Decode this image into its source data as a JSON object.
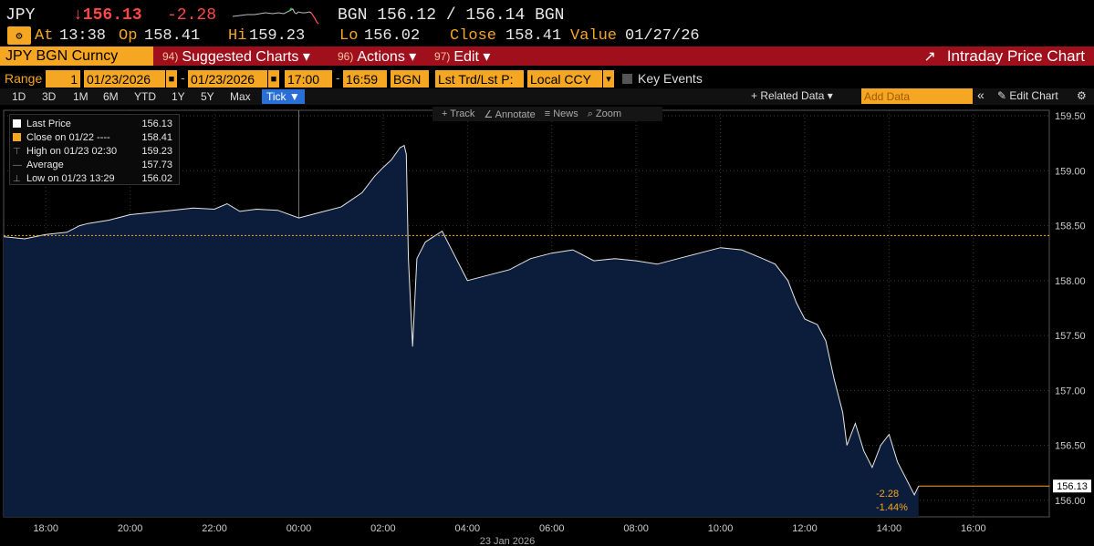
{
  "header": {
    "ticker": "JPY",
    "last": "↓156.13",
    "change": "-2.28",
    "bid_src": "BGN",
    "bid_ask": "156.12 / 156.14",
    "ask_src": "BGN",
    "at_label": "At",
    "at_value": "13:38",
    "op_label": "Op",
    "op_value": "158.41",
    "hi_label": "Hi",
    "hi_value": "159.23",
    "lo_label": "Lo",
    "lo_value": "156.02",
    "close_label": "Close",
    "close_value": "158.41",
    "value_label": "Value",
    "value_date": "01/27/26"
  },
  "menubar": {
    "security": "JPY BGN Curncy",
    "suggested_num": "94)",
    "suggested": "Suggested Charts ▾",
    "actions_num": "96)",
    "actions": "Actions ▾",
    "edit_num": "97)",
    "edit": "Edit ▾",
    "title": "Intraday Price Chart"
  },
  "range": {
    "label": "Range",
    "count": "1",
    "start_date": "01/23/2026",
    "end_date": "01/23/2026",
    "start_time": "17:00",
    "end_time": "16:59",
    "source": "BGN",
    "field": "Lst Trd/Lst P:",
    "currency": "Local CCY",
    "key_events": "Key Events"
  },
  "periods": [
    "1D",
    "3D",
    "1M",
    "6M",
    "YTD",
    "1Y",
    "5Y",
    "Max"
  ],
  "active_period": "Tick ▼",
  "right_controls": {
    "related": "+ Related Data ▾",
    "add_data_placeholder": "Add Data",
    "collapse": "«",
    "edit_chart": "✎ Edit Chart",
    "settings": "⚙"
  },
  "tools": [
    "+ Track",
    "∠ Annotate",
    "≡ News",
    "⌕ Zoom"
  ],
  "legend": [
    {
      "label": "Last Price",
      "value": "156.13",
      "color": "#ffffff"
    },
    {
      "label": "Close on 01/22 ----",
      "value": "158.41",
      "color": "#f5a623"
    },
    {
      "label": "High on 01/23 02:30",
      "value": "159.23",
      "color": "#888888"
    },
    {
      "label": "Average",
      "value": "157.73",
      "color": "#888888"
    },
    {
      "label": "Low on 01/23 13:29",
      "value": "156.02",
      "color": "#888888"
    }
  ],
  "colors": {
    "accent": "#f5a623",
    "menubar": "#a0101c",
    "down": "#ff4747",
    "area_fill": "#0b1d3a"
  },
  "chart_data": {
    "type": "area",
    "x_tick_labels": [
      "18:00",
      "20:00",
      "22:00",
      "00:00",
      "02:00",
      "04:00",
      "06:00",
      "08:00",
      "10:00",
      "12:00",
      "14:00",
      "16:00"
    ],
    "xlabel": "23 Jan 2026",
    "y_ticks": [
      156.0,
      156.5,
      157.0,
      157.5,
      158.0,
      158.5,
      159.0,
      159.5
    ],
    "y_tick_labels": [
      "156.00",
      "156.50",
      "157.00",
      "157.50",
      "158.00",
      "158.50",
      "159.00",
      "159.50"
    ],
    "ylim": [
      155.85,
      159.55
    ],
    "prev_close": 158.41,
    "last_value": 156.13,
    "last_label": "156.13",
    "change_label": "-2.28",
    "change_pct_label": "-1.44%",
    "series": [
      {
        "x_hours": [
          17.0,
          17.5,
          18.0,
          18.5,
          18.8,
          19.0,
          19.5,
          20.0,
          20.5,
          21.0,
          21.5,
          22.0,
          22.3,
          22.6,
          23.0,
          23.5,
          24.0,
          24.3,
          24.6,
          25.0,
          25.5,
          25.8,
          26.0,
          26.2,
          26.4,
          26.5,
          26.55,
          26.6,
          26.7,
          26.75,
          26.8,
          27.0,
          27.2,
          27.4,
          27.6,
          27.8,
          28.0,
          28.5,
          29.0,
          29.5,
          30.0,
          30.5,
          31.0,
          31.5,
          32.0,
          32.5,
          33.0,
          33.5,
          34.0,
          34.5,
          35.0,
          35.3,
          35.6,
          35.8,
          36.0,
          36.3,
          36.5,
          36.7,
          36.9,
          37.0,
          37.2,
          37.4,
          37.6,
          37.8,
          38.0,
          38.2,
          38.4,
          38.6,
          38.7
        ],
        "values": [
          158.4,
          158.38,
          158.42,
          158.44,
          158.5,
          158.52,
          158.55,
          158.6,
          158.62,
          158.64,
          158.66,
          158.65,
          158.7,
          158.63,
          158.65,
          158.64,
          158.57,
          158.6,
          158.63,
          158.67,
          158.8,
          158.95,
          159.03,
          159.1,
          159.21,
          159.23,
          159.15,
          158.2,
          157.4,
          157.8,
          158.2,
          158.35,
          158.4,
          158.45,
          158.3,
          158.15,
          158.0,
          158.05,
          158.1,
          158.2,
          158.25,
          158.28,
          158.18,
          158.2,
          158.18,
          158.15,
          158.2,
          158.25,
          158.3,
          158.28,
          158.2,
          158.15,
          158.0,
          157.8,
          157.65,
          157.6,
          157.45,
          157.1,
          156.8,
          156.5,
          156.7,
          156.45,
          156.3,
          156.5,
          156.6,
          156.35,
          156.2,
          156.05,
          156.13
        ]
      }
    ]
  }
}
